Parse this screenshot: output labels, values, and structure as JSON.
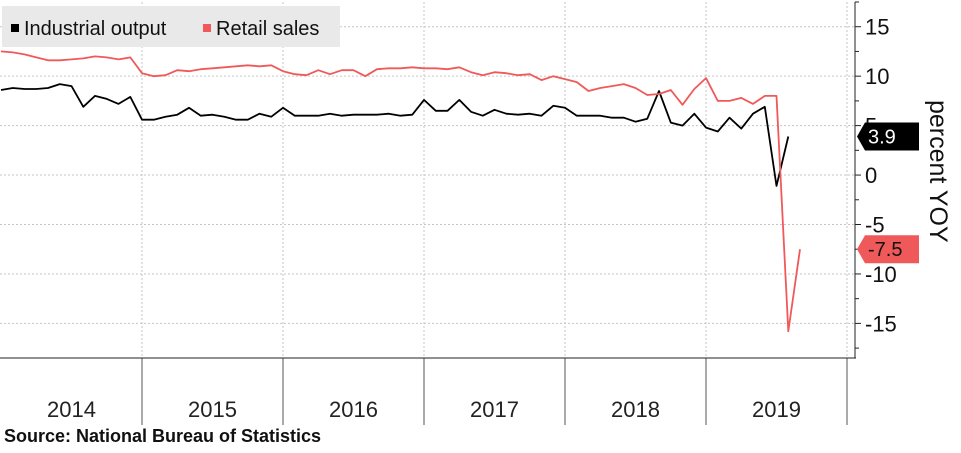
{
  "chart_data": {
    "type": "line",
    "title": "",
    "xlabel": "",
    "ylabel": "percent YOY",
    "ylim": [
      -18.5,
      17.5
    ],
    "yticks": [
      15,
      10,
      5,
      0,
      -5,
      -10,
      -15
    ],
    "ytick_labels": [
      "15",
      "10",
      "5",
      "0",
      "-5",
      "-10",
      "-15"
    ],
    "xticks": [
      "2014",
      "2015",
      "2016",
      "2017",
      "2018",
      "2019"
    ],
    "x_start": "2014-01",
    "grid": true,
    "legend_position": "top-left",
    "y_axis_side": "right",
    "series": [
      {
        "name": "Industrial output",
        "color": "#000000",
        "last_value_label": "3.9",
        "values": [
          8.6,
          8.8,
          8.7,
          8.7,
          8.8,
          9.2,
          9.0,
          6.9,
          8.0,
          7.7,
          7.2,
          7.9,
          5.6,
          5.6,
          5.9,
          6.1,
          6.8,
          6.0,
          6.1,
          5.9,
          5.6,
          5.6,
          6.2,
          5.9,
          6.8,
          6.0,
          6.0,
          6.0,
          6.2,
          6.0,
          6.1,
          6.1,
          6.1,
          6.2,
          6.0,
          6.1,
          7.6,
          6.5,
          6.5,
          7.6,
          6.4,
          6.0,
          6.6,
          6.2,
          6.1,
          6.2,
          6.0,
          7.0,
          6.8,
          6.0,
          6.0,
          6.0,
          5.8,
          5.8,
          5.4,
          5.7,
          8.5,
          5.3,
          5.0,
          6.2,
          4.8,
          4.4,
          5.8,
          4.7,
          6.2,
          6.9,
          -1.1,
          3.9
        ]
      },
      {
        "name": "Retail sales",
        "color": "#f0595a",
        "last_value_label": "-7.5",
        "values": [
          12.5,
          12.4,
          12.2,
          11.9,
          11.6,
          11.6,
          11.7,
          11.8,
          12.0,
          11.9,
          11.7,
          11.9,
          10.3,
          10.0,
          10.1,
          10.6,
          10.5,
          10.7,
          10.8,
          10.9,
          11.0,
          11.1,
          11.0,
          11.1,
          10.5,
          10.2,
          10.1,
          10.6,
          10.2,
          10.6,
          10.6,
          10.0,
          10.7,
          10.8,
          10.8,
          10.9,
          10.8,
          10.8,
          10.7,
          10.9,
          10.4,
          10.1,
          10.4,
          10.3,
          10.1,
          10.2,
          9.6,
          10.0,
          9.7,
          9.4,
          8.5,
          8.8,
          9.0,
          9.2,
          8.8,
          8.1,
          8.2,
          8.6,
          7.1,
          8.7,
          9.8,
          7.5,
          7.5,
          7.8,
          7.2,
          8.0,
          8.0,
          -15.8,
          -7.5
        ]
      }
    ]
  },
  "source": "Source: National Bureau of Statistics"
}
